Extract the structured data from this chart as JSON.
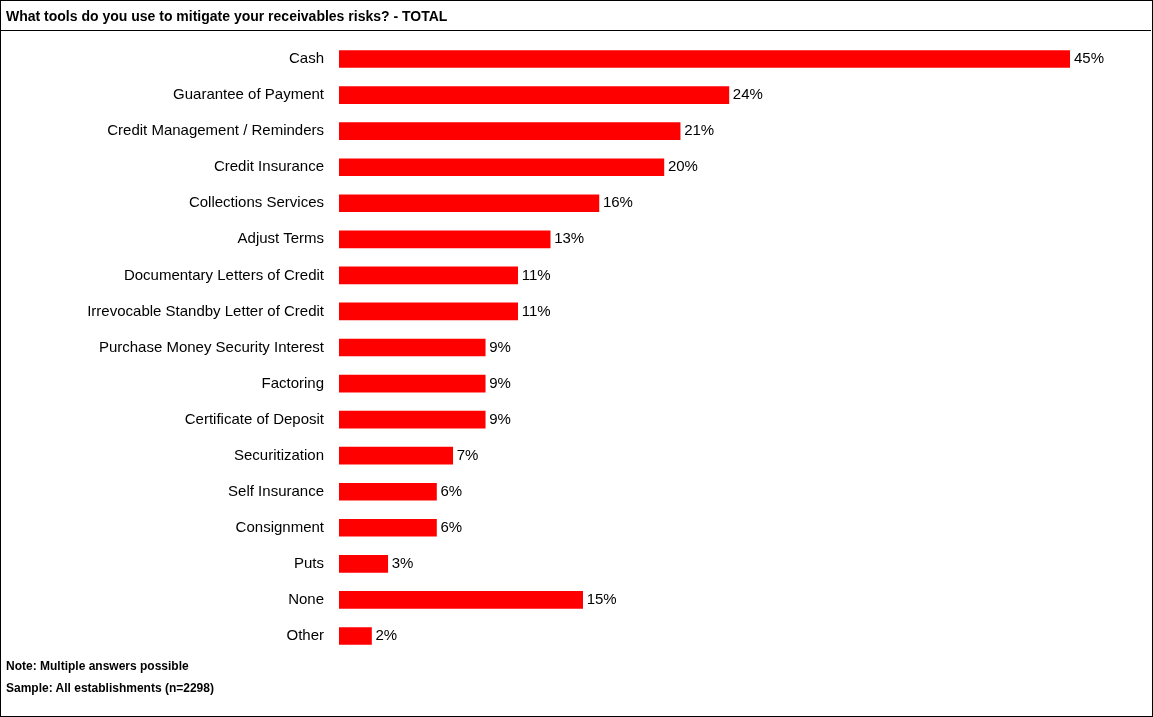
{
  "chart_data": {
    "type": "bar",
    "orientation": "horizontal",
    "title": "What tools do you use to mitigate your receivables risks? - TOTAL",
    "categories": [
      "Cash",
      "Guarantee of Payment",
      "Credit Management / Reminders",
      "Credit Insurance",
      "Collections Services",
      "Adjust Terms",
      "Documentary Letters of Credit",
      "Irrevocable Standby Letter of Credit",
      "Purchase Money Security Interest",
      "Factoring",
      "Certificate of Deposit",
      "Securitization",
      "Self Insurance",
      "Consignment",
      "Puts",
      "None",
      "Other"
    ],
    "values": [
      45,
      24,
      21,
      20,
      16,
      13,
      11,
      11,
      9,
      9,
      9,
      7,
      6,
      6,
      3,
      15,
      2
    ],
    "value_labels": [
      "45%",
      "24%",
      "21%",
      "20%",
      "16%",
      "13%",
      "11%",
      "11%",
      "9%",
      "9%",
      "9%",
      "7%",
      "6%",
      "6%",
      "3%",
      "15%",
      "2%"
    ],
    "color": "#ff0000",
    "legend": false,
    "grid": false,
    "annotations": [
      "Note: Multiple answers possible",
      "Sample: All establishments (n=2298)"
    ]
  }
}
